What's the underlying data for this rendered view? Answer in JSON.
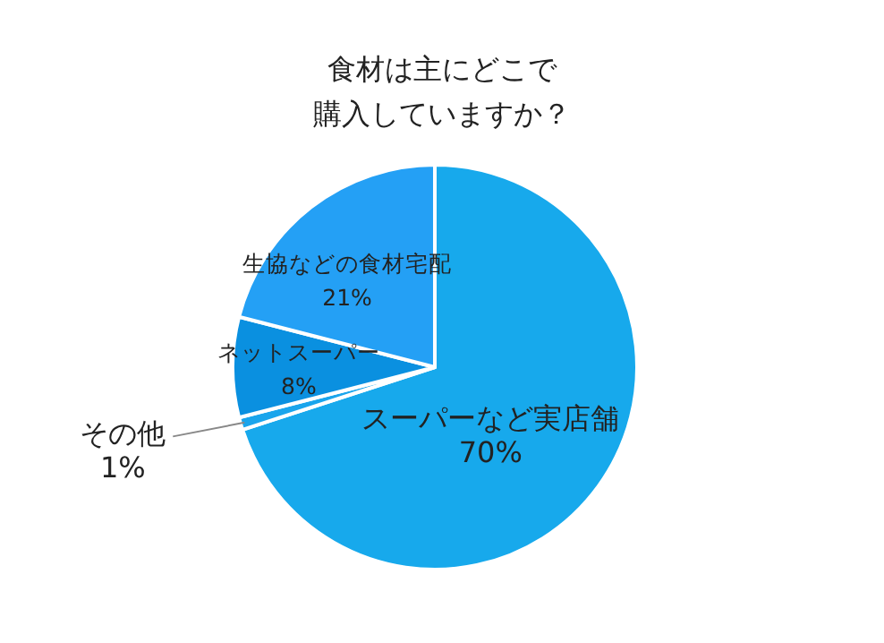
{
  "chart_data": {
    "type": "pie",
    "title": "食材は主にどこで",
    "subtitle": "購入していますか？",
    "categories": [
      "スーパーなど実店舗",
      "その他",
      "ネットスーパー",
      "生協などの食材宅配"
    ],
    "values": [
      70,
      1,
      8,
      21
    ],
    "colors": [
      "#17a9ec",
      "#1aa5ec",
      "#0a90e0",
      "#24a0f5"
    ],
    "value_labels": [
      "70%",
      "1%",
      "8%",
      "21%"
    ],
    "legend": false
  }
}
